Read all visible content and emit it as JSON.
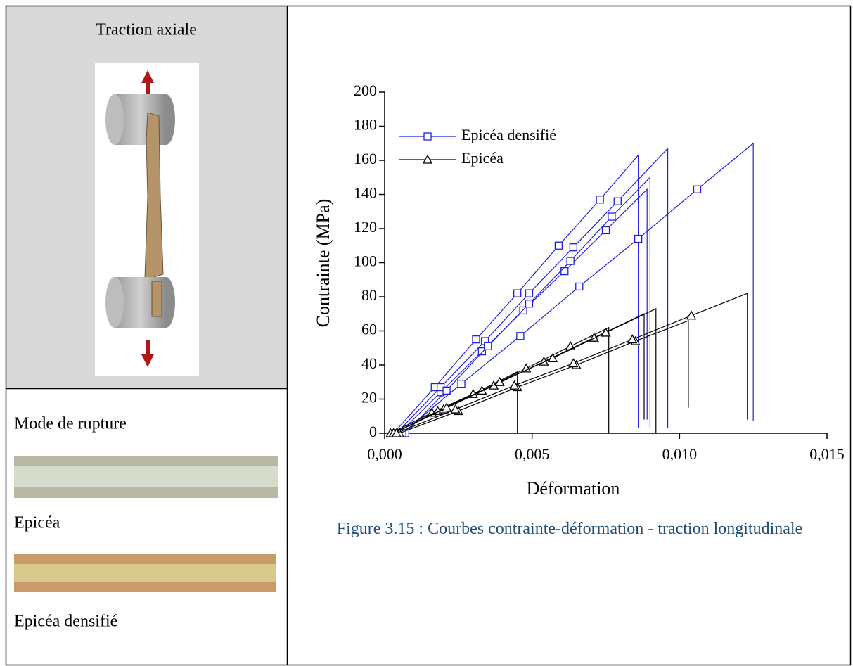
{
  "panel": {
    "title": "Traction axiale",
    "failure_title": "Mode de rupture",
    "photo1_label": "Epicéa",
    "photo2_label": "Epicéa densifié"
  },
  "caption": "Figure 3.15 : Courbes contrainte-déformation - traction longitudinale",
  "chart_data": {
    "type": "line",
    "xlabel": "Déformation",
    "ylabel": "Contrainte (MPa)",
    "xlim": [
      0,
      0.015
    ],
    "ylim": [
      0,
      200
    ],
    "xticks": [
      {
        "value": 0,
        "label": "0,000"
      },
      {
        "value": 0.005,
        "label": "0,005"
      },
      {
        "value": 0.01,
        "label": "0,010"
      },
      {
        "value": 0.015,
        "label": "0,015"
      }
    ],
    "yticks": [
      0,
      20,
      40,
      60,
      80,
      100,
      120,
      140,
      160,
      180,
      200
    ],
    "series": [
      {
        "name": "Epicéa densifié",
        "color": "#1f1fdf",
        "marker": "square",
        "curves": [
          {
            "x": [
              0.0003,
              0.0017,
              0.0031,
              0.0045,
              0.0059,
              0.0073,
              0.0086,
              0.0086
            ],
            "values": [
              0,
              27,
              55,
              82,
              110,
              137,
              163,
              3
            ]
          },
          {
            "x": [
              0.0005,
              0.0019,
              0.0033,
              0.0047,
              0.0061,
              0.0075,
              0.0089,
              0.0089
            ],
            "values": [
              0,
              24,
              48,
              72,
              95,
              119,
              143,
              8
            ]
          },
          {
            "x": [
              0.0004,
              0.0019,
              0.0034,
              0.0049,
              0.0064,
              0.0079,
              0.0096,
              0.0096
            ],
            "values": [
              0,
              27,
              54,
              82,
              109,
              136,
              167,
              3
            ]
          },
          {
            "x": [
              0.0007,
              0.0021,
              0.0035,
              0.0049,
              0.0063,
              0.0077,
              0.009,
              0.009
            ],
            "values": [
              0,
              25,
              51,
              76,
              101,
              127,
              150,
              3
            ]
          },
          {
            "x": [
              0.0006,
              0.0026,
              0.0046,
              0.0066,
              0.0086,
              0.0106,
              0.0125,
              0.0125
            ],
            "values": [
              0,
              29,
              57,
              86,
              114,
              143,
              170,
              7
            ]
          }
        ]
      },
      {
        "name": "Epicéa",
        "color": "#000000",
        "marker": "triangle",
        "curves": [
          {
            "x": [
              0.0002,
              0.0016,
              0.003,
              0.0045,
              0.0045
            ],
            "values": [
              0,
              12,
              23,
              36,
              0
            ]
          },
          {
            "x": [
              0.0003,
              0.0018,
              0.0033,
              0.0048,
              0.0063,
              0.0076,
              0.0076
            ],
            "values": [
              0,
              13,
              25,
              38,
              51,
              62,
              0
            ]
          },
          {
            "x": [
              0.0003,
              0.002,
              0.0037,
              0.0054,
              0.0071,
              0.0088,
              0.0088
            ],
            "values": [
              0,
              14,
              28,
              42,
              56,
              70,
              8
            ]
          },
          {
            "x": [
              0.0003,
              0.0021,
              0.0039,
              0.0057,
              0.0075,
              0.0092,
              0.0092
            ],
            "values": [
              0,
              15,
              30,
              44,
              59,
              73,
              0
            ]
          },
          {
            "x": [
              0.0005,
              0.0025,
              0.0045,
              0.0065,
              0.0085,
              0.0103,
              0.0103
            ],
            "values": [
              0,
              13,
              27,
              40,
              54,
              66,
              15
            ]
          },
          {
            "x": [
              0.0004,
              0.0024,
              0.0044,
              0.0064,
              0.0084,
              0.0104,
              0.0123,
              0.0123
            ],
            "values": [
              0,
              14,
              28,
              41,
              55,
              69,
              82,
              8
            ]
          }
        ]
      }
    ]
  }
}
